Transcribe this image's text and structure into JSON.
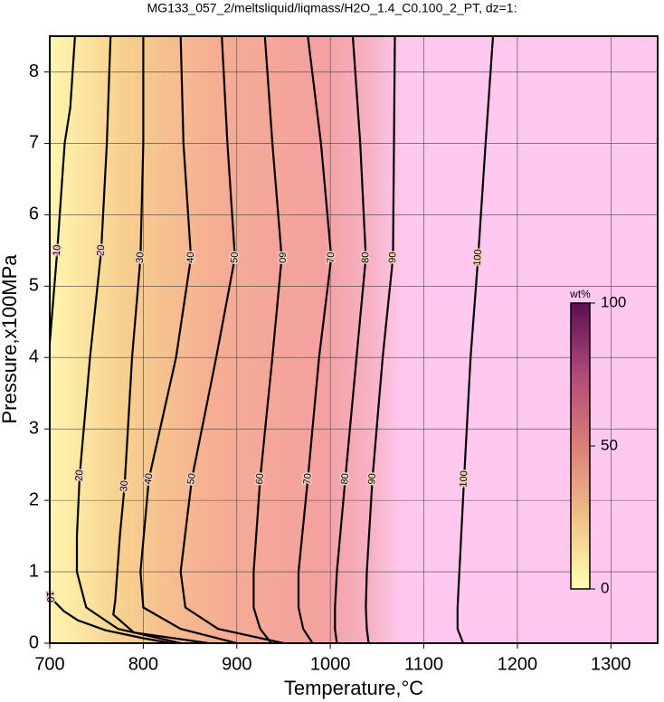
{
  "chart_data": {
    "type": "contour",
    "title": "MG133_057_2/meltsliquid/liqmass/H2O_1.4_C0.100_2_PT, dz=1:",
    "x_label": "Temperature,°C",
    "y_label": "Pressure,x100MPa",
    "xlim": [
      700,
      1350
    ],
    "ylim": [
      0,
      8.5
    ],
    "xticks": [
      700,
      800,
      900,
      1000,
      1100,
      1200,
      1300
    ],
    "yticks": [
      0,
      1,
      2,
      3,
      4,
      5,
      6,
      7,
      8
    ],
    "grid": true,
    "line_color": "#000000",
    "series": [
      {
        "name": "10",
        "x": [
          727,
          722,
          716,
          708,
          700,
          null,
          700,
          715,
          730,
          760,
          800,
          830
        ],
        "y": [
          8.5,
          7.5,
          7,
          5.5,
          4.2,
          null,
          0.65,
          0.45,
          0.32,
          0.18,
          0.07,
          0
        ]
      },
      {
        "name": "20",
        "x": [
          765,
          761,
          755,
          743,
          732,
          729,
          729,
          739,
          773,
          840
        ],
        "y": [
          8.5,
          7,
          5.5,
          4,
          2.35,
          1.5,
          1,
          0.5,
          0.2,
          0
        ]
      },
      {
        "name": "30",
        "x": [
          800,
          800,
          797,
          788,
          780,
          775,
          770,
          768,
          790,
          870
        ],
        "y": [
          8.5,
          7,
          5.4,
          4,
          2.2,
          1.5,
          0.6,
          0.4,
          0.15,
          0
        ]
      },
      {
        "name": "40",
        "x": [
          840,
          843,
          851,
          835,
          806,
          797,
          800,
          840,
          900
        ],
        "y": [
          8.5,
          7,
          5.4,
          4,
          2.3,
          1,
          0.5,
          0.2,
          0
        ]
      },
      {
        "name": "50",
        "x": [
          884,
          890,
          898,
          878,
          852,
          840,
          845,
          880,
          950
        ],
        "y": [
          8.5,
          7,
          5.4,
          4,
          2.3,
          1,
          0.5,
          0.2,
          0
        ]
      },
      {
        "name": "60",
        "x": [
          930,
          938,
          948,
          938,
          925,
          918,
          918,
          925,
          937
        ],
        "y": [
          8.5,
          7,
          5.4,
          4,
          2.3,
          1,
          0.5,
          0.2,
          0
        ]
      },
      {
        "name": "70",
        "x": [
          976,
          990,
          1001,
          988,
          976,
          966,
          966,
          971,
          981
        ],
        "y": [
          8.5,
          7,
          5.4,
          4,
          2.3,
          1,
          0.5,
          0.2,
          0
        ]
      },
      {
        "name": "80",
        "x": [
          1024,
          1032,
          1038,
          1028,
          1016,
          1007,
          1005,
          1005,
          1007
        ],
        "y": [
          8.5,
          7,
          5.4,
          4,
          2.3,
          1,
          0.5,
          0.2,
          0
        ]
      },
      {
        "name": "90",
        "x": [
          1069,
          1068,
          1067,
          1056,
          1045,
          1039,
          1038,
          1039,
          1041
        ],
        "y": [
          8.5,
          7,
          5.4,
          4,
          2.3,
          1,
          0.5,
          0.2,
          0
        ]
      },
      {
        "name": "100",
        "x": [
          1174,
          1166,
          1158,
          1150,
          1143,
          1138,
          1136,
          1136,
          1142
        ],
        "y": [
          8.5,
          7,
          5.4,
          4,
          2.3,
          1,
          0.5,
          0.2,
          0
        ]
      }
    ],
    "colorbar": {
      "label": "wt%",
      "lim": [
        0,
        100
      ],
      "ticks": [
        0,
        50,
        100
      ],
      "colors": [
        "#ffffb4",
        "#f0c088",
        "#d98078",
        "#b04a78",
        "#5a1050"
      ]
    }
  }
}
